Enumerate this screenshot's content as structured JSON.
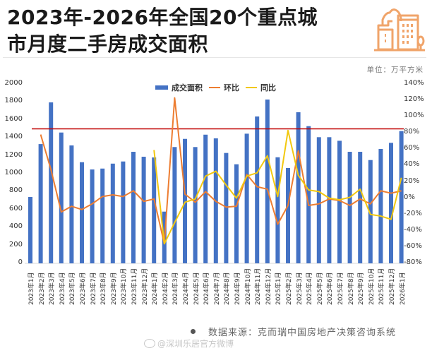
{
  "header": {
    "title_line1": "2023年-2026年全国20个重点城",
    "title_line2": "市月度二手房成交面积",
    "unit": "单位：万平方米"
  },
  "legend": {
    "bar": "成交面积",
    "mom": "环比",
    "yoy": "同比"
  },
  "footer": {
    "source": "数据来源：克而瑞中国房地产决策咨询系统",
    "watermark": "@深圳乐居官方微博"
  },
  "colors": {
    "bar": "#4472c4",
    "mom": "#ed7d31",
    "yoy": "#f2c80f",
    "reference_line": "#c00000",
    "logo": "#f0a46a"
  },
  "chart_data": {
    "type": "bar",
    "title": "2023年-2026年全国20个重点城市月度二手房成交面积",
    "xlabel": "",
    "ylabel": "万平方米",
    "ylim": [
      0,
      2000
    ],
    "y2lim": [
      -80,
      140
    ],
    "y_ticks": [
      "0",
      "200",
      "400",
      "600",
      "800",
      "1000",
      "1200",
      "1400",
      "1600",
      "1800",
      "2000"
    ],
    "y2_ticks": [
      "-80%",
      "-60%",
      "-40%",
      "-20%",
      "0%",
      "20%",
      "40%",
      "60%",
      "80%",
      "100%",
      "120%",
      "140%"
    ],
    "reference_line": 1500,
    "grid": false,
    "legend_position": "top",
    "categories": [
      "2023年1月",
      "2023年2月",
      "2023年3月",
      "2023年4月",
      "2023年5月",
      "2023年6月",
      "2023年7月",
      "2023年8月",
      "2023年9月",
      "2023年10月",
      "2023年11月",
      "2023年12月",
      "2024年1月",
      "2024年2月",
      "2024年3月",
      "2024年4月",
      "2024年5月",
      "2024年6月",
      "2024年7月",
      "2024年8月",
      "2024年9月",
      "2024年10月",
      "2024年11月",
      "2024年12月",
      "2025年1月",
      "2025年2月",
      "2025年3月",
      "2025年4月",
      "2025年5月",
      "2025年6月",
      "2025年7月",
      "2025年8月",
      "2025年9月",
      "2025年10月",
      "2025年11月",
      "2025年12月",
      "2026年1月"
    ],
    "series": [
      {
        "name": "成交面积",
        "type": "bar",
        "axis": "left",
        "values": [
          740,
          1330,
          1795,
          1459,
          1315,
          1128,
          1047,
          1057,
          1112,
          1136,
          1244,
          1189,
          1181,
          577,
          1297,
          1388,
          1297,
          1435,
          1394,
          1231,
          1105,
          1446,
          1638,
          1827,
          1183,
          1063,
          1685,
          1530,
          1407,
          1407,
          1367,
          1244,
          1244,
          1152,
          1276,
          1344,
          1475
        ]
      },
      {
        "name": "环比",
        "type": "line",
        "axis": "right",
        "unit": "%",
        "values": [
          null,
          78,
          35,
          -17,
          -10,
          -14,
          -7,
          2,
          4,
          2,
          9,
          -4,
          -1,
          -56,
          123,
          5,
          -5,
          8,
          -4,
          -11,
          -10,
          29,
          14,
          11,
          -32,
          -9,
          58,
          -9,
          -7,
          -1,
          -3,
          -9,
          -1,
          -7,
          9,
          6,
          9
        ]
      },
      {
        "name": "同比",
        "type": "line",
        "axis": "right",
        "unit": "%",
        "values": [
          null,
          null,
          null,
          null,
          null,
          null,
          null,
          null,
          null,
          null,
          null,
          null,
          59,
          -56,
          -30,
          -5,
          -1,
          27,
          33,
          16,
          0,
          27,
          31,
          52,
          2,
          83,
          28,
          10,
          8,
          0,
          -2,
          1,
          11,
          -20,
          -22,
          -26,
          25
        ]
      }
    ]
  }
}
